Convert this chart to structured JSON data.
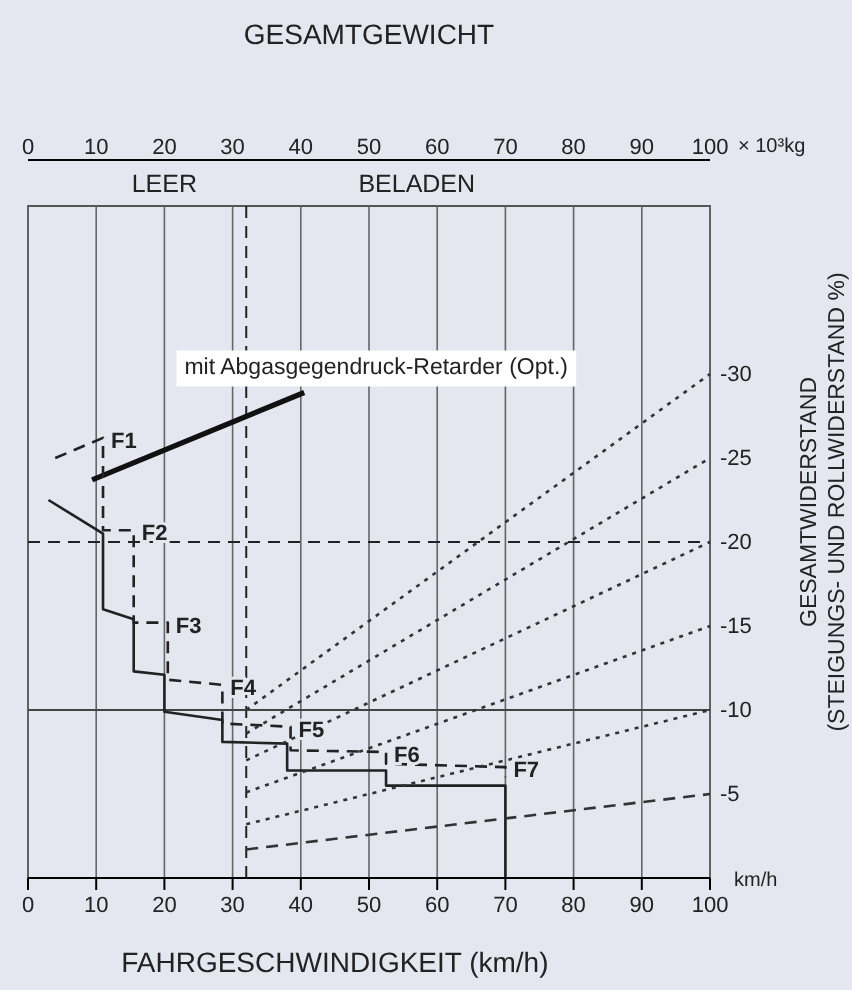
{
  "chart_data": {
    "type": "line",
    "x2label": "GESAMTGEWICHT",
    "xlabel": "FAHRGESCHWINDIGKEIT (km/h)",
    "ylabel": "GESAMTWIDERSTAND (STEIGUNGS- UND ROLLWIDERSTAND %)",
    "xlim": [
      0,
      100
    ],
    "xticks": [
      0,
      10,
      20,
      30,
      40,
      50,
      60,
      70,
      80,
      90,
      100
    ],
    "x2lim": [
      0,
      100
    ],
    "x2ticks": [
      0,
      10,
      20,
      30,
      40,
      50,
      60,
      70,
      80,
      90,
      100
    ],
    "ylim": [
      0,
      -40
    ],
    "yticks": [
      -5,
      -10,
      -15,
      -20,
      -25,
      -30
    ],
    "grid": "x",
    "marker": "none",
    "series": [
      {
        "color": "#111111",
        "line_style": "solid",
        "x": [
          9.4,
          40.5
        ],
        "values": [
          -23.7,
          -28.9
        ]
      },
      {
        "color": "#222222",
        "line_style": "solid",
        "x": [
          3,
          11,
          11,
          15.5,
          15.5,
          20,
          20,
          28.5,
          28.5,
          38,
          38,
          52.5,
          52.5,
          70,
          70
        ],
        "values": [
          -22.5,
          -20.5,
          -16,
          -15.4,
          -12.3,
          -12.1,
          -9.9,
          -9.4,
          -8.1,
          -8,
          -6.4,
          -6.4,
          -5.5,
          -5.5,
          0
        ]
      },
      {
        "color": "#222222",
        "line_style": "dashed",
        "x": [
          4,
          11,
          11,
          15.5,
          15.5,
          20.5,
          20.5,
          28.5,
          28.5,
          38.5,
          38.5,
          52.5,
          52.5,
          70,
          70
        ],
        "values": [
          -25,
          -26.2,
          -20.7,
          -20.7,
          -15.2,
          -15.2,
          -11.8,
          -11.5,
          -9.2,
          -9,
          -7.6,
          -7.5,
          -6.8,
          -6.6,
          -6
        ]
      },
      {
        "color": "#333333",
        "line_style": "dotted",
        "x": [
          32,
          100
        ],
        "values": [
          -10,
          -30
        ]
      },
      {
        "color": "#333333",
        "line_style": "dotted",
        "x": [
          32,
          100
        ],
        "values": [
          -8.6,
          -25
        ]
      },
      {
        "color": "#333333",
        "line_style": "dotted",
        "x": [
          32,
          100
        ],
        "values": [
          -7,
          -20
        ]
      },
      {
        "color": "#333333",
        "line_style": "dotted",
        "x": [
          32,
          100
        ],
        "values": [
          -5.1,
          -15
        ]
      },
      {
        "color": "#333333",
        "line_style": "dotted",
        "x": [
          32,
          100
        ],
        "values": [
          -3.2,
          -10
        ]
      },
      {
        "color": "#333333",
        "line_style": "dashed",
        "x": [
          32,
          100
        ],
        "values": [
          -1.7,
          -5
        ]
      }
    ],
    "ref_lines": [
      {
        "axis": "x",
        "value": 32,
        "line_style": "dashed",
        "color": "#222222"
      },
      {
        "axis": "y",
        "value": -20,
        "line_style": "dashed",
        "color": "#222222"
      },
      {
        "axis": "y",
        "value": -10,
        "line_style": "solid",
        "color": "#444444"
      }
    ],
    "annotations": [
      "× 10³kg",
      "LEER",
      "BELADEN",
      "km/h",
      {
        "text": "mit Abgasgegendruck-Retarder (Opt.)",
        "x": 40.5,
        "y": -28.9
      },
      {
        "text": "F1",
        "x": 11,
        "y": -26.2
      },
      {
        "text": "F2",
        "x": 15.5,
        "y": -20.7
      },
      {
        "text": "F3",
        "x": 20.5,
        "y": -15.2
      },
      {
        "text": "F4",
        "x": 28.5,
        "y": -11.5
      },
      {
        "text": "F5",
        "x": 38.5,
        "y": -9
      },
      {
        "text": "F6",
        "x": 52.5,
        "y": -7.5
      },
      {
        "text": "F7",
        "x": 70,
        "y": -6.6
      }
    ]
  }
}
